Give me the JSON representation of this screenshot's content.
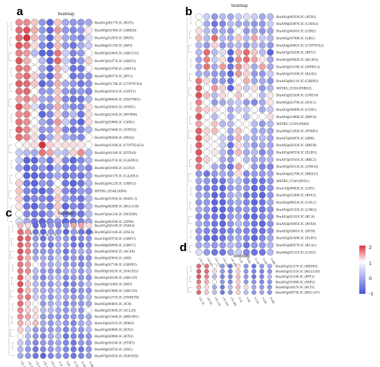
{
  "colors": {
    "low": "#4a55d9",
    "mid": "#ffffff",
    "high": "#d9323a"
  },
  "legend": {
    "ticks": [
      "2",
      "1",
      "0",
      "-1"
    ],
    "range": [
      -1,
      2
    ]
  },
  "columns": [
    "CK-3h",
    "CK-6h",
    "CK-12h",
    "CK-24h",
    "CK-48h",
    "T-3h",
    "T-6h",
    "T-12h",
    "T-24h",
    "T-48h"
  ],
  "chart_data": [
    {
      "type": "heatmap",
      "panel": "a",
      "title": "heatmap",
      "rows": [
        "BraA01g001770.3C (PLP3)",
        "BraA09g051960.3C (ARR20)",
        "BraA01g012910.3C (PAP2)",
        "BraA06g015190.3C (JMT)",
        "BraA03g024650.3C (ABCG31)",
        "BraA07g024770.3C (ARF22)",
        "BraA09g024790.3C (ARF14)",
        "BraA07g009770.3C (IPT1)",
        "BraA02g031780.3C (CYP707A3)",
        "BraA03g031810.3C (GINT1)",
        "BraA03g006040.3C (EXO70D1)",
        "BraA01g020610.3C (WSD1)",
        "BraA03g022420.3C (MYB96)",
        "BraA07g029080.3C (GER1)",
        "BraA06g015660.3C (XTH22)",
        "BraA01g000200.3C (FBA2)",
        "BraA01g033190.3C (CYP705A22)",
        "BraA01g041160.3C (DTX43)",
        "BraA02g024710.3C (GA20X1)",
        "BraA03g031000.3C (LOX2)",
        "BraA07g041570.3C (GA20X1)",
        "BraA02g041220.3C (UBP12)",
        "MSTRG.26548 (AIP4)",
        "BraA03g037650.3C (RAP2-3)",
        "BraA04g002690.3C (BGLU18)",
        "BraA07g041520.3C (NCED9)",
        "BraA05g002590.3C (ZFP8)"
      ],
      "values": [
        [
          1.0,
          1.0,
          0.5,
          -0.6,
          -0.9,
          0.5,
          -0.5,
          -0.6,
          -0.6,
          -0.5
        ],
        [
          1.3,
          1.5,
          0.7,
          -0.6,
          -0.9,
          0.9,
          -0.6,
          -0.7,
          -0.6,
          0.2
        ],
        [
          1.3,
          1.8,
          0.6,
          -0.5,
          -0.9,
          0.5,
          -0.5,
          -0.6,
          -0.7,
          -0.2
        ],
        [
          1.5,
          1.2,
          0.3,
          -0.7,
          -0.9,
          0.6,
          -0.6,
          -0.8,
          -0.5,
          -0.3
        ],
        [
          1.1,
          0.9,
          -0.4,
          -0.9,
          -0.9,
          1.2,
          -0.3,
          -0.7,
          -0.6,
          0.0
        ],
        [
          1.5,
          0.7,
          0.0,
          -0.4,
          -0.9,
          1.3,
          -0.3,
          -0.8,
          -0.6,
          0.4
        ],
        [
          1.2,
          1.1,
          0.0,
          -0.5,
          -0.9,
          0.7,
          -0.2,
          -0.8,
          -0.8,
          0.1
        ],
        [
          1.0,
          1.3,
          0.4,
          -0.6,
          -0.9,
          0.7,
          0.0,
          -0.8,
          -0.7,
          -0.6
        ],
        [
          1.4,
          1.3,
          0.5,
          -0.9,
          -0.7,
          0.7,
          -0.5,
          -0.6,
          -0.8,
          -0.6
        ],
        [
          1.2,
          1.3,
          0.0,
          -0.6,
          -0.6,
          0.5,
          -0.6,
          -0.7,
          -0.6,
          -0.7
        ],
        [
          0.8,
          1.1,
          0.6,
          -0.5,
          -0.6,
          0.6,
          -0.7,
          -0.8,
          -0.8,
          -0.4
        ],
        [
          1.5,
          0.7,
          -0.2,
          -0.7,
          -0.6,
          0.7,
          -0.5,
          -0.7,
          -0.7,
          0.3
        ],
        [
          1.0,
          1.1,
          0.0,
          -0.9,
          -0.7,
          0.4,
          -0.6,
          -0.4,
          -0.8,
          0.3
        ],
        [
          1.2,
          1.0,
          0.0,
          -0.5,
          -0.7,
          0.9,
          -0.3,
          -0.7,
          -0.9,
          0.3
        ],
        [
          1.4,
          1.0,
          0.2,
          -0.6,
          -0.6,
          0.6,
          -0.7,
          -0.8,
          -0.7,
          -0.4
        ],
        [
          1.3,
          1.0,
          0.3,
          -0.8,
          -0.5,
          0.4,
          -0.5,
          -0.6,
          -0.7,
          0.0
        ],
        [
          0.0,
          0.2,
          0.3,
          1.8,
          0.4,
          0.2,
          0.3,
          0.3,
          0.2,
          0.0
        ],
        [
          -0.3,
          -0.4,
          -0.5,
          1.2,
          0.8,
          -0.3,
          -0.4,
          0.4,
          1.0,
          -0.4
        ],
        [
          -0.3,
          -0.9,
          -0.9,
          -0.5,
          -0.8,
          0.3,
          -0.7,
          -0.9,
          -0.7,
          -0.4
        ],
        [
          -0.5,
          -0.9,
          -0.8,
          -0.6,
          -0.9,
          -0.4,
          -0.8,
          -0.8,
          -0.6,
          -0.7
        ],
        [
          0.0,
          -0.9,
          -0.9,
          -0.8,
          -0.7,
          -0.5,
          -0.8,
          -0.7,
          -0.8,
          -0.5
        ],
        [
          0.4,
          -0.8,
          -0.9,
          -0.6,
          -0.7,
          0.0,
          -0.8,
          -0.9,
          -0.8,
          -0.4
        ],
        [
          0.5,
          -0.7,
          -0.8,
          -0.9,
          -0.7,
          0.3,
          -0.7,
          -0.8,
          -0.6,
          -0.6
        ],
        [
          0.4,
          -0.8,
          -0.7,
          -0.7,
          -0.8,
          0.5,
          -0.6,
          -0.7,
          -0.8,
          -0.4
        ],
        [
          0.2,
          -0.8,
          -0.9,
          -0.6,
          -0.8,
          0.5,
          -0.9,
          -0.7,
          -0.8,
          -0.4
        ],
        [
          0.0,
          -0.7,
          -0.8,
          -0.8,
          -0.6,
          0.3,
          -0.7,
          -0.7,
          -0.8,
          -0.4
        ],
        [
          -0.2,
          -0.5,
          -0.8,
          -0.9,
          -0.7,
          -0.6,
          -0.9,
          -0.8,
          -0.7,
          -0.5
        ]
      ]
    },
    {
      "type": "heatmap",
      "panel": "b",
      "title": "heatmap",
      "rows": [
        "BraA01g005030.3C (ATH1)",
        "BraA09g058970.3C (GATA3)",
        "BraA05g042610.3C (LSH2)",
        "BraA02g037600.3C (LIR1)",
        "BraA04g020810.3C (CYP707A2)",
        "BraA03g016290.3C (RPT2)",
        "BraA03g039020.3C (BCAT4)",
        "BraA03g031180.3C (SPPE6-3)",
        "BraA03g019190.3C (RAX2)",
        "BraA03g061110.3C (GBDP2)",
        "MSTRG.23330 (PSBO2)",
        "BraA03g025630.3C (UNE10)",
        "BraA05g023790.3C (SOC1)",
        "BraA03g030090.3C (CUR1)",
        "BraA04g014860.3C (BDC8)",
        "MSTRG.13320 (PAR2)",
        "BraA06g012020.3C (PNSB1)",
        "BraA07g030970.3C (HPR)",
        "BraA05g026320.3C (IMJ30)",
        "BraA05g040550.3C (ELIP1)",
        "BraA07g019310.3C (RBC5)",
        "BraA03g050130.3C (UNE10)",
        "BraA04g022780.3C (BBX25)",
        "MSTRG.37249 (RVE1)",
        "BraA10g000820.3C (LHY)",
        "BraA05g015000.3C (RVE2)",
        "BraA02g006230.3C (COL1)",
        "BraA03g035250.3C (LNK3)",
        "BraA03g021010.3C (RCA)",
        "BraA02g036950.3C (RVE8)",
        "BraA03g038010.3C (HYH)",
        "BraA05g024380.3C (ELIP1)",
        "BraA05g009570.3C (RCA1)",
        "BraA06g055310.3C (CAT2)"
      ],
      "values": [
        [
          0.0,
          -0.3,
          -0.6,
          -0.4,
          -0.5,
          -0.3,
          -0.2,
          -0.3,
          -0.5,
          -0.4
        ],
        [
          0.0,
          -0.5,
          -0.8,
          -0.7,
          -0.4,
          -0.5,
          -0.5,
          -0.6,
          -0.6,
          -0.3
        ],
        [
          0.3,
          -0.4,
          -0.6,
          -0.5,
          -0.6,
          0.0,
          -0.6,
          -0.5,
          -0.6,
          -0.5
        ],
        [
          0.6,
          -0.4,
          1.3,
          -0.4,
          -0.5,
          0.5,
          -0.4,
          0.8,
          -0.3,
          -0.4
        ],
        [
          -0.4,
          -0.6,
          0.4,
          -0.6,
          -0.5,
          -0.4,
          -0.6,
          -0.4,
          -0.5,
          -0.6
        ],
        [
          -0.4,
          1.3,
          -0.4,
          -0.2,
          -0.9,
          0.7,
          1.3,
          0.5,
          -0.4,
          -0.9
        ],
        [
          -0.5,
          1.1,
          -0.3,
          0.3,
          -0.9,
          1.0,
          1.3,
          0.8,
          0.2,
          -0.5
        ],
        [
          -0.5,
          1.2,
          -0.5,
          0.9,
          -0.8,
          1.0,
          0.4,
          -0.5,
          0.8,
          -0.5
        ],
        [
          -0.5,
          -0.5,
          -0.6,
          -0.6,
          -0.9,
          0.9,
          0.4,
          -0.6,
          -0.6,
          -0.3
        ],
        [
          1.2,
          0.3,
          -0.6,
          -0.6,
          -0.8,
          0.0,
          0.7,
          -0.5,
          -0.5,
          -0.6
        ],
        [
          1.4,
          0.0,
          0.9,
          0.4,
          -0.9,
          0.3,
          -0.3,
          0.3,
          -0.6,
          -0.4
        ],
        [
          1.5,
          0.6,
          -0.4,
          0.3,
          0.0,
          0.5,
          0.0,
          0.0,
          -0.4,
          0.2
        ],
        [
          1.1,
          0.0,
          -0.6,
          -0.5,
          -0.4,
          -0.3,
          -0.6,
          -0.7,
          -0.5,
          0.2
        ],
        [
          0.8,
          0.4,
          0.3,
          0.0,
          -0.5,
          -0.3,
          -0.3,
          0.0,
          -0.5,
          -0.3
        ],
        [
          1.5,
          0.0,
          -0.4,
          0.0,
          -0.5,
          0.0,
          -0.4,
          0.0,
          0.0,
          0.3
        ],
        [
          0.8,
          0.0,
          0.5,
          -0.4,
          -0.4,
          0.0,
          0.0,
          -0.4,
          -0.6,
          -0.4
        ],
        [
          1.4,
          0.4,
          0.6,
          0.0,
          -0.5,
          0.5,
          0.0,
          -0.5,
          -0.5,
          -0.5
        ],
        [
          1.5,
          0.3,
          0.0,
          -0.3,
          -0.6,
          0.6,
          -0.4,
          -0.5,
          -0.4,
          -0.5
        ],
        [
          1.4,
          0.0,
          0.0,
          -0.3,
          -0.8,
          0.3,
          -0.4,
          -0.6,
          -0.5,
          -0.5
        ],
        [
          1.5,
          0.0,
          0.2,
          -0.4,
          -0.7,
          0.6,
          -0.5,
          -0.4,
          -0.7,
          -0.5
        ],
        [
          1.3,
          0.4,
          0.0,
          -0.5,
          -0.6,
          0.0,
          -0.4,
          -0.5,
          -0.5,
          -0.4
        ],
        [
          1.2,
          0.0,
          -0.5,
          -0.6,
          -0.8,
          0.8,
          0.0,
          -0.6,
          -0.7,
          -0.7
        ],
        [
          -0.6,
          -0.8,
          -0.6,
          -0.5,
          -0.6,
          0.3,
          -0.7,
          -0.6,
          -0.6,
          -0.5
        ],
        [
          -0.5,
          -0.6,
          -0.8,
          -0.8,
          -0.5,
          -0.4,
          -0.7,
          -0.8,
          -0.8,
          -0.6
        ],
        [
          -0.6,
          -0.7,
          -0.8,
          -0.9,
          -0.6,
          -0.5,
          -0.6,
          -0.9,
          -0.8,
          -0.6
        ],
        [
          -0.5,
          -0.6,
          -0.9,
          -0.8,
          -0.5,
          -0.4,
          -0.8,
          -0.8,
          -0.9,
          -0.6
        ],
        [
          -0.6,
          -0.6,
          -0.9,
          -0.9,
          -0.6,
          -0.5,
          -0.7,
          -0.9,
          -0.8,
          -0.5
        ],
        [
          -0.5,
          -0.6,
          -0.9,
          -0.9,
          -0.7,
          -0.6,
          -0.6,
          -0.8,
          -0.8,
          -0.6
        ],
        [
          -0.7,
          -0.7,
          -0.8,
          -0.9,
          -0.6,
          -0.5,
          -0.8,
          -0.9,
          -0.7,
          -0.6
        ],
        [
          -0.5,
          -0.6,
          -0.8,
          -0.9,
          -0.6,
          -0.4,
          -0.6,
          -0.8,
          -0.9,
          -0.6
        ],
        [
          -0.6,
          -0.7,
          -0.8,
          -0.8,
          -0.7,
          -0.6,
          -0.7,
          -0.8,
          -0.8,
          -0.6
        ],
        [
          -0.6,
          -0.8,
          -0.9,
          -0.8,
          -0.6,
          -0.5,
          -0.7,
          -0.9,
          -0.7,
          -0.5
        ],
        [
          -0.5,
          -0.5,
          -0.6,
          -0.6,
          -0.4,
          -0.5,
          -0.8,
          -0.6,
          -0.6,
          -0.4
        ],
        [
          -0.2,
          -0.6,
          -0.8,
          -0.8,
          -0.5,
          -0.3,
          -0.7,
          -0.8,
          -0.8,
          -0.4
        ]
      ]
    },
    {
      "type": "heatmap",
      "panel": "c",
      "title": "heatmap",
      "rows": [
        "BraA01g026140.3C (NAS4)",
        "BraA05g023140.3C (EXL6)",
        "BraA10g029750.3C (GRP17)",
        "BraA08g028990.3C (GRP17)",
        "BraA05g039650.3C (ACA9)",
        "BraA06g029650.3C (SHI)",
        "BraA05g027740.3C (GBDP2)",
        "BraA09g016530.3C (NAC025)",
        "BraA01g018140.3C (ABCG9)",
        "BraA06g011690.3C (SHT)",
        "BraA03g053680.3C (ABCG9)",
        "BraA04g012750.3C (SWEET8)",
        "BraA05g004810.3C (JG8)",
        "BraA05g033030.3C (SCL29)",
        "BraA03g013440.3C (BHLH91)",
        "BraA10g032510.3C (PSK6)",
        "BraA03g020890.3C (KTI2)",
        "BraA03g020900.3C (KTI2)",
        "BraA03g026540.3C (FTIP3)",
        "BraA09g018750.3C (SDC)",
        "BraA07g034350.3C (NAC029)"
      ],
      "values": [
        [
          0.6,
          0.3,
          -0.9,
          -0.8,
          -0.6,
          -0.7,
          -0.6,
          0.8,
          0.8,
          0.3
        ],
        [
          1.3,
          0.9,
          -0.8,
          -0.9,
          -0.6,
          -0.6,
          -0.9,
          -0.6,
          -0.8,
          -0.9
        ],
        [
          1.5,
          1.3,
          -0.6,
          -0.8,
          -0.6,
          -0.5,
          -0.6,
          -0.8,
          -0.7,
          -0.6
        ],
        [
          1.4,
          1.0,
          -0.5,
          -0.7,
          -0.8,
          -0.5,
          -0.6,
          -0.8,
          -0.8,
          -0.6
        ],
        [
          1.5,
          1.1,
          -0.6,
          -0.6,
          -0.6,
          -0.5,
          -0.8,
          -0.6,
          -0.5,
          -0.5
        ],
        [
          1.3,
          0.7,
          -0.5,
          -0.5,
          -0.6,
          -0.3,
          -0.7,
          -0.6,
          -0.7,
          -0.6
        ],
        [
          1.2,
          0.9,
          0.0,
          -0.5,
          -0.5,
          -0.4,
          -0.6,
          -0.6,
          -0.7,
          -0.5
        ],
        [
          1.2,
          1.0,
          -0.4,
          -0.6,
          -0.6,
          -0.6,
          -0.5,
          -0.5,
          -0.6,
          -0.4
        ],
        [
          1.4,
          0.3,
          -0.5,
          -0.7,
          -0.5,
          -0.4,
          -0.7,
          -0.6,
          -0.6,
          -0.6
        ],
        [
          1.5,
          0.5,
          -0.4,
          -0.6,
          -0.6,
          -0.4,
          -0.8,
          -0.7,
          -0.6,
          -0.4
        ],
        [
          1.4,
          0.6,
          -0.4,
          -0.5,
          -0.5,
          -0.4,
          -0.6,
          -0.7,
          -0.6,
          -0.6
        ],
        [
          1.0,
          1.2,
          -0.3,
          -0.5,
          -0.6,
          -0.4,
          -0.5,
          -0.6,
          -0.6,
          -0.4
        ],
        [
          1.3,
          0.4,
          0.0,
          -0.6,
          -0.5,
          -0.4,
          -0.7,
          -0.6,
          -0.6,
          -0.5
        ],
        [
          1.0,
          0.4,
          0.3,
          -0.4,
          -0.4,
          -0.5,
          -0.6,
          -0.5,
          -0.6,
          0.0
        ],
        [
          1.0,
          0.8,
          0.3,
          -0.6,
          -0.6,
          -0.6,
          -0.6,
          -0.6,
          -0.6,
          -0.5
        ],
        [
          0.7,
          0.3,
          0.6,
          -0.5,
          -0.6,
          -0.4,
          -0.6,
          -0.7,
          -0.5,
          -0.4
        ],
        [
          0.4,
          -0.3,
          -0.6,
          -0.6,
          -0.6,
          -0.5,
          -0.7,
          -0.6,
          -0.6,
          -0.4
        ],
        [
          0.0,
          -0.4,
          -0.6,
          -0.7,
          -0.5,
          -0.4,
          -0.8,
          -0.7,
          -0.7,
          -0.6
        ],
        [
          -0.3,
          -0.5,
          -0.7,
          -0.6,
          -0.6,
          -0.5,
          -0.7,
          -0.8,
          -0.6,
          -0.6
        ],
        [
          -0.4,
          -0.6,
          -0.8,
          -0.7,
          -0.6,
          -0.5,
          -0.7,
          -0.8,
          -0.8,
          -0.6
        ],
        [
          -0.5,
          -0.6,
          -0.8,
          -0.9,
          -0.7,
          -0.6,
          -0.7,
          -0.8,
          -0.7,
          -0.6
        ]
      ]
    },
    {
      "type": "heatmap",
      "panel": "d",
      "title": "heatmap",
      "rows": [
        "BraA01g022370.3C (MSSP3)",
        "BraA02g023150.3C (BGLU20)",
        "BraA05g015340.3C (PPT1)",
        "BraA01g035980.3C (NSP2)",
        "BraA03g018570.3C (PLT5)",
        "BraA05g049730.3C (BGLU47)"
      ],
      "values": [
        [
          1.3,
          1.2,
          0.0,
          -0.6,
          -0.8,
          0.3,
          -0.6,
          -0.8,
          -0.6,
          -0.5
        ],
        [
          1.4,
          1.3,
          0.3,
          -0.6,
          -0.7,
          0.4,
          -0.6,
          -0.7,
          -0.7,
          -0.6
        ],
        [
          1.5,
          1.1,
          -0.4,
          -0.7,
          -0.7,
          0.6,
          -0.6,
          -0.8,
          -0.7,
          -0.4
        ],
        [
          1.2,
          0.7,
          0.0,
          -0.6,
          -0.7,
          0.4,
          -0.6,
          -0.6,
          -0.7,
          -0.6
        ],
        [
          0.8,
          0.3,
          -0.5,
          -0.8,
          -0.4,
          0.6,
          0.3,
          -0.5,
          -0.6,
          -0.6
        ],
        [
          1.3,
          0.5,
          -0.4,
          -0.8,
          -0.6,
          0.4,
          -0.4,
          -0.6,
          -0.5,
          -0.6
        ]
      ]
    }
  ]
}
